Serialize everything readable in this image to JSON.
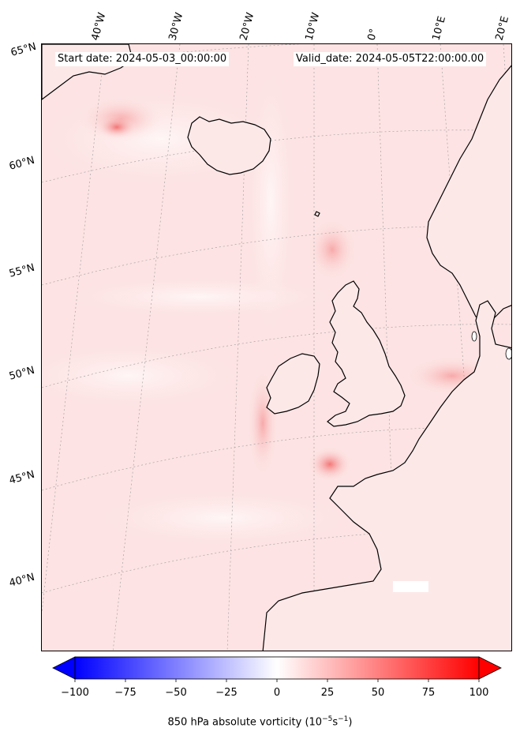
{
  "header": {
    "start_date": "Start date: 2024-05-03_00:00:00",
    "valid_date": "Valid_date: 2024-05-05T22:00:00.00"
  },
  "map": {
    "lon_labels": [
      "40°W",
      "30°W",
      "20°W",
      "10°W",
      "0°",
      "10°E",
      "20°E"
    ],
    "lat_labels": [
      "65°N",
      "60°N",
      "55°N",
      "50°N",
      "45°N",
      "40°N"
    ],
    "land_color": "#ffffff",
    "coast_color": "#000000"
  },
  "colorbar": {
    "label": "850 hPa absolute vorticity (10",
    "label_exp1": "−5",
    "label_mid": "s",
    "label_exp2": "−1",
    "label_end": ")",
    "ticks": [
      "−100",
      "−75",
      "−50",
      "−25",
      "0",
      "25",
      "50",
      "75",
      "100"
    ],
    "min_color": "#0000ff",
    "mid_color": "#ffffff",
    "max_color": "#ff0000"
  }
}
